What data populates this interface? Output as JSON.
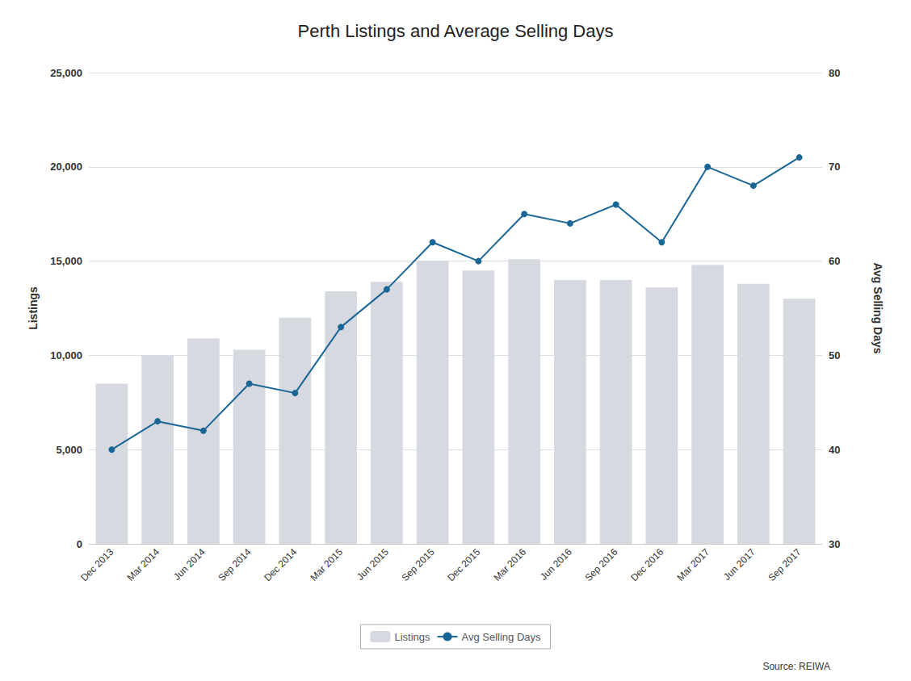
{
  "chart_data": {
    "type": "bar",
    "title": "Perth Listings and Average Selling Days",
    "categories": [
      "Dec 2013",
      "Mar 2014",
      "Jun 2014",
      "Sep 2014",
      "Dec 2014",
      "Mar 2015",
      "Jun 2015",
      "Sep 2015",
      "Dec 2015",
      "Mar 2016",
      "Jun 2016",
      "Sep 2016",
      "Dec 2016",
      "Mar 2017",
      "Jun 2017",
      "Sep 2017"
    ],
    "series": [
      {
        "name": "Listings",
        "type": "bar",
        "color": "#d6d9e0",
        "values": [
          8500,
          10000,
          10900,
          10300,
          12000,
          13400,
          13900,
          15000,
          14500,
          15100,
          14000,
          14000,
          13600,
          14800,
          13800,
          13000
        ]
      },
      {
        "name": "Avg Selling Days",
        "type": "line",
        "axis": "y2",
        "color": "#1a6696",
        "marker": "circle",
        "values": [
          40,
          43,
          42,
          47,
          46,
          53,
          57,
          62,
          60,
          65,
          64,
          66,
          62,
          70,
          68,
          71
        ]
      }
    ],
    "ylabel": "Listings",
    "y2label": "Avg Selling Days",
    "ylim": [
      0,
      25000
    ],
    "yticks": [
      0,
      {
        "value": 5000,
        "label": "5,000"
      },
      {
        "value": 10000,
        "label": "10,000"
      },
      {
        "value": 15000,
        "label": "15,000"
      },
      {
        "value": 20000,
        "label": "20,000"
      },
      {
        "value": 25000,
        "label": "25,000"
      }
    ],
    "y2lim": [
      30,
      80
    ],
    "y2ticks": [
      30,
      40,
      50,
      60,
      70,
      80
    ],
    "grid": true,
    "legend": "bottom",
    "annotations": [
      "Source: REIWA"
    ]
  }
}
